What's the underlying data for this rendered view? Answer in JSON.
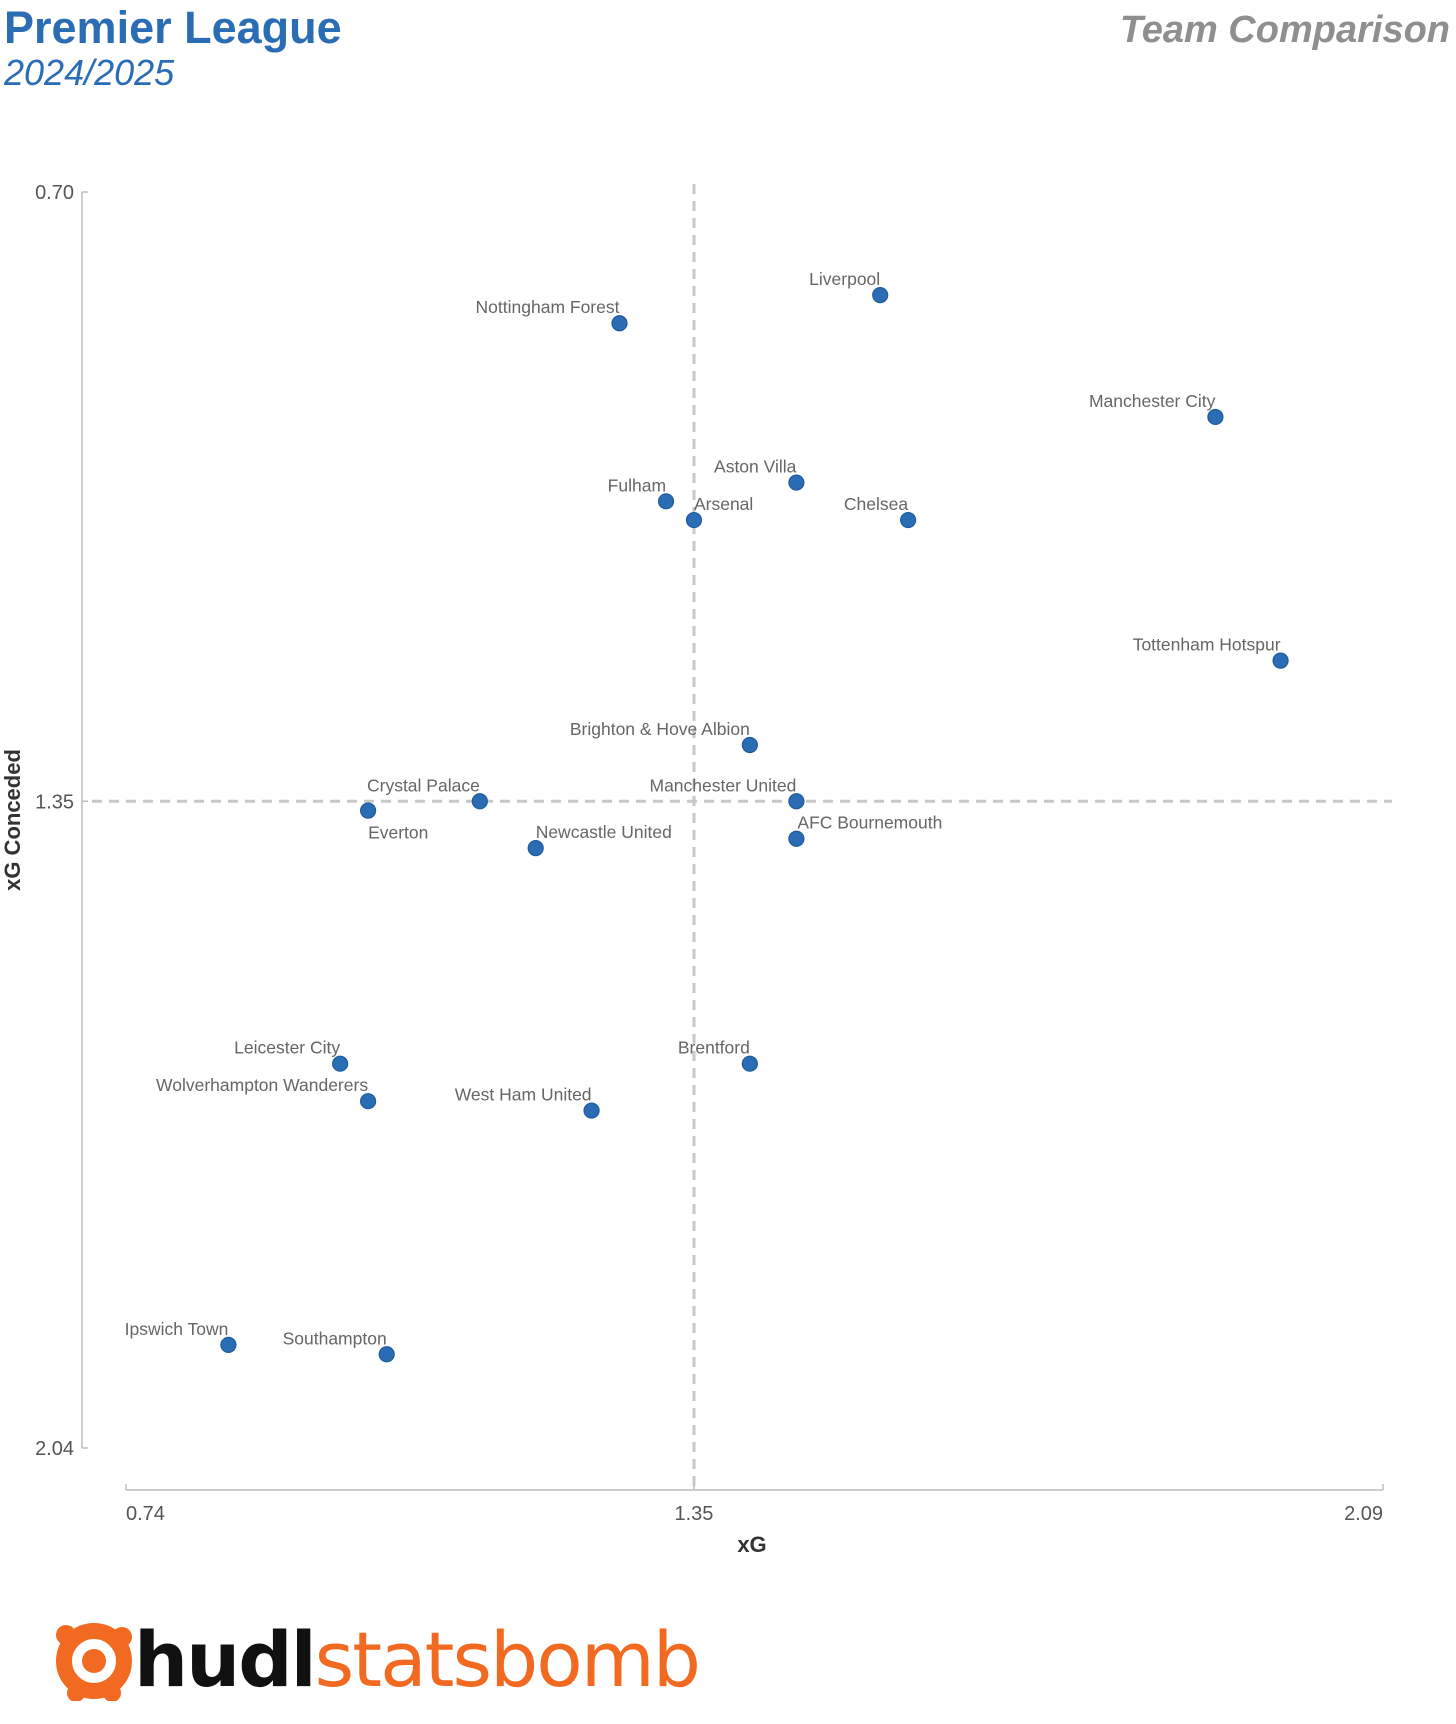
{
  "header": {
    "league": "Premier League",
    "season": "2024/2025",
    "chart_kind": "Team Comparison"
  },
  "brand": {
    "primary": "hudl",
    "secondary": "statsbomb",
    "logo_icon": "hudl-statsbomb-logo-icon",
    "accent_color": "#f26a21",
    "title_color": "#2a6db5",
    "point_color": "#2a6db5"
  },
  "chart_data": {
    "type": "scatter",
    "xlabel": "xG",
    "ylabel": "xG Conceded",
    "xlim": [
      0.74,
      2.09
    ],
    "ylim": [
      0.7,
      2.04
    ],
    "y_inverted": true,
    "x_ticks": [
      "0.74",
      "1.35",
      "2.09"
    ],
    "y_ticks": [
      "0.70",
      "1.35",
      "2.04"
    ],
    "reference_x": 1.35,
    "reference_y": 1.35,
    "grid": false,
    "points": [
      {
        "name": "Liverpool",
        "x": 1.55,
        "y": 0.81
      },
      {
        "name": "Nottingham Forest",
        "x": 1.27,
        "y": 0.84
      },
      {
        "name": "Manchester City",
        "x": 1.91,
        "y": 0.94
      },
      {
        "name": "Aston Villa",
        "x": 1.46,
        "y": 1.01
      },
      {
        "name": "Fulham",
        "x": 1.32,
        "y": 1.03
      },
      {
        "name": "Arsenal",
        "x": 1.35,
        "y": 1.05
      },
      {
        "name": "Chelsea",
        "x": 1.58,
        "y": 1.05
      },
      {
        "name": "Tottenham Hotspur",
        "x": 1.98,
        "y": 1.2
      },
      {
        "name": "Brighton & Hove Albion",
        "x": 1.41,
        "y": 1.29
      },
      {
        "name": "Crystal Palace",
        "x": 1.12,
        "y": 1.35
      },
      {
        "name": "Manchester United",
        "x": 1.46,
        "y": 1.35
      },
      {
        "name": "Everton",
        "x": 1.0,
        "y": 1.36
      },
      {
        "name": "AFC Bournemouth",
        "x": 1.46,
        "y": 1.39
      },
      {
        "name": "Newcastle United",
        "x": 1.18,
        "y": 1.4
      },
      {
        "name": "Leicester City",
        "x": 0.97,
        "y": 1.63
      },
      {
        "name": "Brentford",
        "x": 1.41,
        "y": 1.63
      },
      {
        "name": "Wolverhampton Wanderers",
        "x": 1.0,
        "y": 1.67
      },
      {
        "name": "West Ham United",
        "x": 1.24,
        "y": 1.68
      },
      {
        "name": "Ipswich Town",
        "x": 0.85,
        "y": 1.93
      },
      {
        "name": "Southampton",
        "x": 1.02,
        "y": 1.94
      }
    ]
  }
}
